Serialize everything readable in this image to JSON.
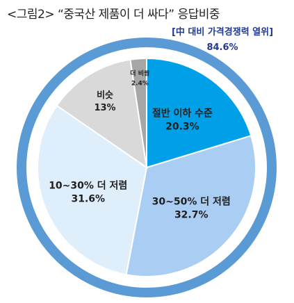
{
  "title": "<그림2> “중국산 제품이 더 싸다” 응답비중",
  "annotation": {
    "label": "[中 대비 가격경쟁력 열위]",
    "value": "84.6%"
  },
  "colors": {
    "ring": "#5b9bd5",
    "highlight": "#00a0e9",
    "mid": "#a9cdf3",
    "light": "#dfeefb",
    "similar": "#d9d9d9",
    "pricier": "#a6a6a6",
    "label_dark": "#1f1f1f"
  },
  "chart_data": {
    "type": "pie",
    "title": "<그림2> “중국산 제품이 더 싸다” 응답비중",
    "slices": [
      {
        "label": "절반 이하 수준",
        "value": 20.3,
        "display": "20.3%",
        "color_key": "highlight"
      },
      {
        "label": "30~50% 더 저렴",
        "value": 32.7,
        "display": "32.7%",
        "color_key": "mid"
      },
      {
        "label": "10~30% 더 저렴",
        "value": 31.6,
        "display": "31.6%",
        "color_key": "light"
      },
      {
        "label": "비슷",
        "value": 13,
        "display": "13%",
        "color_key": "similar"
      },
      {
        "label": "더 비쌈",
        "value": 2.4,
        "display": "2.4%",
        "color_key": "pricier"
      }
    ],
    "grouped_annotation": {
      "label": "[中 대비 가격경쟁력 열위]",
      "value": 84.6
    }
  }
}
